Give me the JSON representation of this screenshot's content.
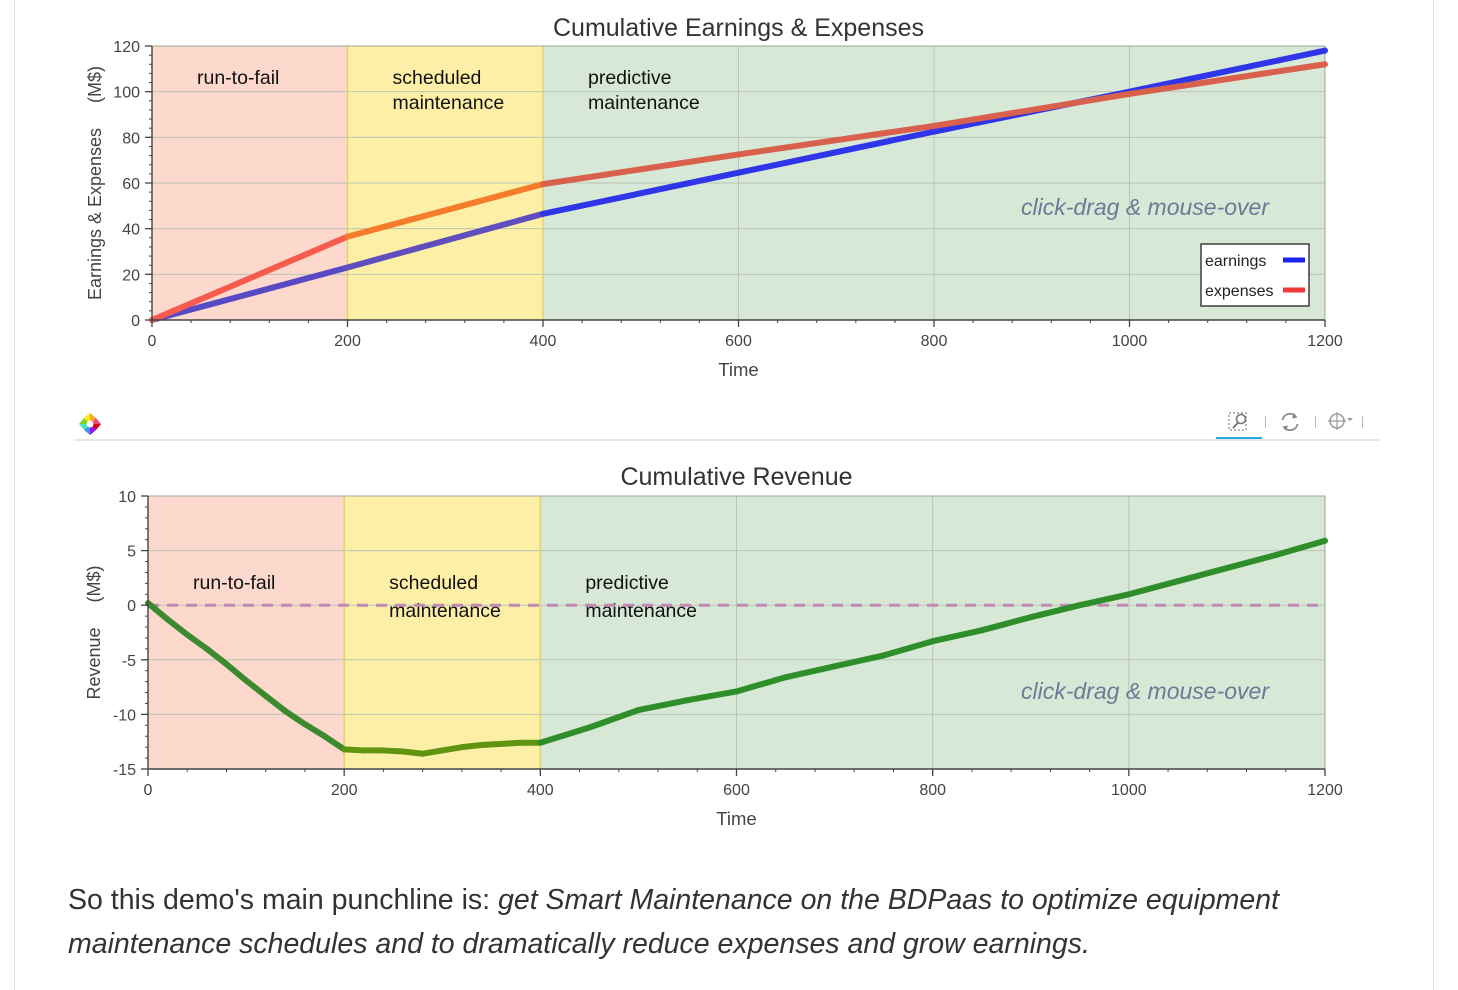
{
  "colors": {
    "run_to_fail": "#fdd8cc",
    "scheduled": "#fdf0a6",
    "predictive": "#d8e8d6",
    "earnings": "#2f35e8",
    "expenses": "#ef5545",
    "revenue": "#2d8e2a",
    "zero_line": "#c08ab4",
    "hint": "#6b7b96",
    "axis": "#444444"
  },
  "chart_data": [
    {
      "type": "line",
      "title": "Cumulative Earnings & Expenses",
      "xlabel": "Time",
      "ylabel": "Earnings & Expenses     (M$)",
      "xlim": [
        0,
        1200
      ],
      "ylim": [
        0,
        120
      ],
      "xticks": [
        0,
        200,
        400,
        600,
        800,
        1000,
        1200
      ],
      "yticks": [
        0,
        20,
        40,
        60,
        80,
        100,
        120
      ],
      "regions": [
        {
          "name": "run-to-fail",
          "lines": [
            "run-to-fail"
          ],
          "x": [
            0,
            200
          ]
        },
        {
          "name": "scheduled",
          "lines": [
            "scheduled",
            "maintenance"
          ],
          "x": [
            200,
            400
          ]
        },
        {
          "name": "predictive",
          "lines": [
            "predictive",
            "maintenance"
          ],
          "x": [
            400,
            1200
          ]
        }
      ],
      "annotation": "click-drag & mouse-over",
      "legend_position": "bottom-right",
      "series": [
        {
          "name": "earnings",
          "color_key": "earnings",
          "x": [
            0,
            200,
            400,
            600,
            800,
            1000,
            1200
          ],
          "y": [
            0,
            23,
            46.5,
            64.5,
            82.5,
            100,
            118
          ]
        },
        {
          "name": "expenses",
          "color_key": "expenses",
          "x": [
            0,
            200,
            400,
            600,
            800,
            1000,
            1200
          ],
          "y": [
            0,
            36.5,
            59.5,
            72.5,
            85,
            99,
            112
          ]
        }
      ]
    },
    {
      "type": "line",
      "title": "Cumulative Revenue",
      "xlabel": "Time",
      "ylabel": "Revenue     (M$)",
      "xlim": [
        0,
        1200
      ],
      "ylim": [
        -15,
        10
      ],
      "xticks": [
        0,
        200,
        400,
        600,
        800,
        1000,
        1200
      ],
      "yticks": [
        -15,
        -10,
        -5,
        0,
        5,
        10
      ],
      "regions": [
        {
          "name": "run-to-fail",
          "lines": [
            "run-to-fail"
          ],
          "x": [
            0,
            200
          ]
        },
        {
          "name": "scheduled",
          "lines": [
            "scheduled",
            "maintenance"
          ],
          "x": [
            200,
            400
          ]
        },
        {
          "name": "predictive",
          "lines": [
            "predictive",
            "maintenance"
          ],
          "x": [
            400,
            1200
          ]
        }
      ],
      "annotation": "click-drag & mouse-over",
      "zero_line": 0,
      "series": [
        {
          "name": "revenue",
          "color_key": "revenue",
          "x": [
            0,
            20,
            40,
            60,
            80,
            100,
            120,
            140,
            160,
            180,
            200,
            220,
            240,
            260,
            280,
            300,
            320,
            340,
            360,
            380,
            400,
            450,
            500,
            550,
            600,
            650,
            700,
            750,
            800,
            850,
            900,
            950,
            1000,
            1050,
            1100,
            1150,
            1200
          ],
          "y": [
            0.2,
            -1.3,
            -2.7,
            -4.0,
            -5.4,
            -6.9,
            -8.3,
            -9.7,
            -10.9,
            -12.0,
            -13.2,
            -13.3,
            -13.3,
            -13.4,
            -13.6,
            -13.3,
            -13.0,
            -12.8,
            -12.7,
            -12.6,
            -12.6,
            -11.2,
            -9.6,
            -8.7,
            -7.9,
            -6.6,
            -5.6,
            -4.6,
            -3.3,
            -2.3,
            -1.1,
            0.0,
            1.0,
            2.2,
            3.4,
            4.6,
            5.9
          ]
        }
      ]
    }
  ],
  "caption": {
    "lead": "So this demo's main punchline is: ",
    "emphasis": "get Smart Maintenance on the BDPaas to optimize equipment maintenance schedules and to dramatically reduce expenses and grow earnings."
  }
}
